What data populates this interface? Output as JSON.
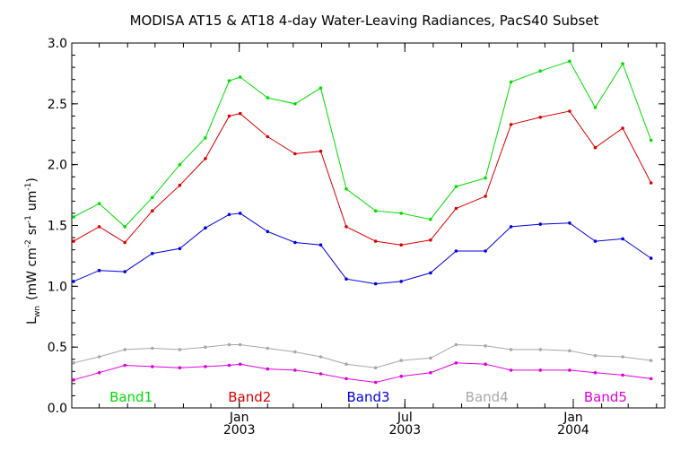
{
  "chart_data": {
    "type": "line",
    "title": "MODISA AT15 & AT18 4-day Water-Leaving Radiances, PacS40 Subset",
    "ylabel": "Lwn (mW cm-2 sr-1 um-1)",
    "ylabel_parts": {
      "main": "L",
      "sub": "wn",
      "open": "(mW cm",
      "e1": "-2",
      "mid": "sr",
      "e2": "-1",
      "end": "um",
      "e3": "-1",
      "close": ")"
    },
    "ylim": [
      0.0,
      3.0
    ],
    "yticks": [
      "0.0",
      "0.5",
      "1.0",
      "1.5",
      "2.0",
      "2.5",
      "3.0"
    ],
    "yticks_values": [
      0.0,
      0.5,
      1.0,
      1.5,
      2.0,
      2.5,
      3.0
    ],
    "xlim": [
      "2002-07-02",
      "2004-04-10"
    ],
    "xticks": [
      {
        "date": "2003-01-01",
        "month": "Jan",
        "year": "2003"
      },
      {
        "date": "2003-07-01",
        "month": "Jul",
        "year": "2003"
      },
      {
        "date": "2004-01-01",
        "month": "Jan",
        "year": "2004"
      }
    ],
    "x": [
      "2002-07-04",
      "2002-08-01",
      "2002-08-29",
      "2002-09-28",
      "2002-10-28",
      "2002-11-25",
      "2002-12-21",
      "2003-01-02",
      "2003-02-01",
      "2003-03-03",
      "2003-03-31",
      "2003-04-28",
      "2003-05-30",
      "2003-06-27",
      "2003-07-29",
      "2003-08-26",
      "2003-09-27",
      "2003-10-25",
      "2003-11-26",
      "2003-12-28",
      "2004-01-25",
      "2004-02-24",
      "2004-03-26"
    ],
    "series": [
      {
        "name": "Band1",
        "color": "#00dd00",
        "values": [
          1.57,
          1.68,
          1.49,
          1.73,
          2.0,
          2.22,
          2.69,
          2.72,
          2.55,
          2.5,
          2.63,
          1.8,
          1.62,
          1.6,
          1.55,
          1.82,
          1.89,
          2.68,
          2.77,
          2.85,
          2.47,
          2.83,
          2.2
        ]
      },
      {
        "name": "Band2",
        "color": "#dd0000",
        "values": [
          1.37,
          1.49,
          1.36,
          1.62,
          1.83,
          2.05,
          2.4,
          2.42,
          2.23,
          2.09,
          2.11,
          1.49,
          1.37,
          1.34,
          1.38,
          1.64,
          1.74,
          2.33,
          2.39,
          2.44,
          2.14,
          2.3,
          1.85
        ]
      },
      {
        "name": "Band3",
        "color": "#0000dd",
        "values": [
          1.04,
          1.13,
          1.12,
          1.27,
          1.31,
          1.48,
          1.59,
          1.6,
          1.45,
          1.36,
          1.34,
          1.06,
          1.02,
          1.04,
          1.11,
          1.29,
          1.29,
          1.49,
          1.51,
          1.52,
          1.37,
          1.39,
          1.23
        ]
      },
      {
        "name": "Band4",
        "color": "#a8a8a8",
        "values": [
          0.37,
          0.42,
          0.48,
          0.49,
          0.48,
          0.5,
          0.52,
          0.52,
          0.49,
          0.46,
          0.42,
          0.36,
          0.33,
          0.39,
          0.41,
          0.52,
          0.51,
          0.48,
          0.48,
          0.47,
          0.43,
          0.42,
          0.39
        ]
      },
      {
        "name": "Band5",
        "color": "#dd00dd",
        "values": [
          0.23,
          0.29,
          0.35,
          0.34,
          0.33,
          0.34,
          0.35,
          0.36,
          0.32,
          0.31,
          0.28,
          0.24,
          0.21,
          0.26,
          0.29,
          0.37,
          0.36,
          0.31,
          0.31,
          0.31,
          0.29,
          0.27,
          0.24
        ]
      }
    ],
    "legend": {
      "placement": "bottom inside plot",
      "entries": [
        "Band1",
        "Band2",
        "Band3",
        "Band4",
        "Band5"
      ]
    },
    "grid": false
  }
}
